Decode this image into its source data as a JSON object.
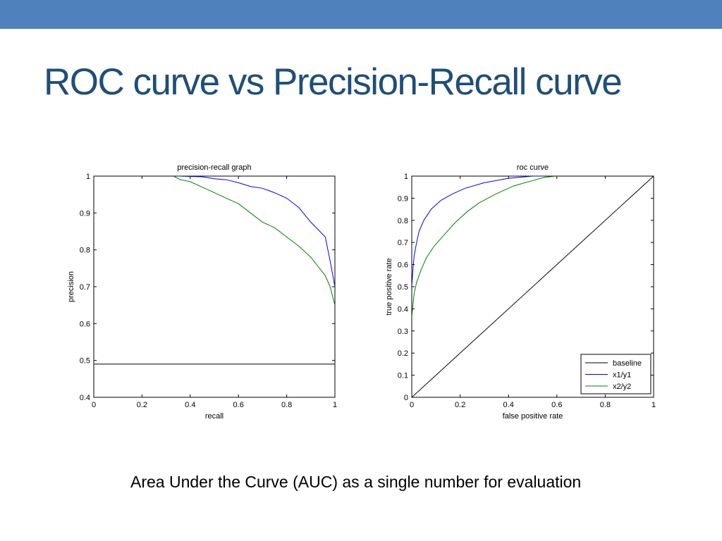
{
  "slide": {
    "title": "ROC curve vs Precision-Recall curve",
    "caption": "Area Under the Curve (AUC) as a single number for evaluation",
    "header_color": "#4f81bd",
    "title_color": "#1f4e79"
  },
  "chart_data": [
    {
      "type": "line",
      "title": "precision-recall graph",
      "xlabel": "recall",
      "ylabel": "precision",
      "xlim": [
        0,
        1
      ],
      "ylim": [
        0.4,
        1
      ],
      "xticks": [
        0,
        0.2,
        0.4,
        0.6,
        0.8,
        1
      ],
      "xtick_labels": [
        "0",
        "0.2",
        "0.4",
        "0.6",
        "0.8",
        "1"
      ],
      "yticks": [
        0.4,
        0.5,
        0.6,
        0.7,
        0.8,
        0.9,
        1
      ],
      "ytick_labels": [
        "0.4",
        "0.5",
        "0.6",
        "0.7",
        "0.8",
        "0.9",
        "1"
      ],
      "grid": false,
      "legend": null,
      "series": [
        {
          "color": "#000000",
          "x": [
            0,
            1
          ],
          "y": [
            0.49,
            0.49
          ]
        },
        {
          "color": "#0000ff",
          "x": [
            0.35,
            0.45,
            0.5,
            0.55,
            0.6,
            0.65,
            0.7,
            0.75,
            0.8,
            0.85,
            0.9,
            0.93,
            0.96,
            0.98,
            1.0
          ],
          "y": [
            1.0,
            0.998,
            0.993,
            0.99,
            0.982,
            0.972,
            0.967,
            0.955,
            0.94,
            0.915,
            0.875,
            0.855,
            0.835,
            0.77,
            0.7
          ]
        },
        {
          "color": "#008000",
          "x": [
            0.33,
            0.36,
            0.4,
            0.45,
            0.5,
            0.55,
            0.6,
            0.65,
            0.7,
            0.75,
            0.8,
            0.85,
            0.9,
            0.93,
            0.96,
            0.98,
            1.0
          ],
          "y": [
            1.0,
            0.99,
            0.985,
            0.97,
            0.955,
            0.94,
            0.925,
            0.9,
            0.875,
            0.86,
            0.835,
            0.81,
            0.78,
            0.755,
            0.73,
            0.7,
            0.65
          ]
        }
      ]
    },
    {
      "type": "line",
      "title": "roc curve",
      "xlabel": "false positive rate",
      "ylabel": "true positive rate",
      "xlim": [
        0,
        1
      ],
      "ylim": [
        0,
        1
      ],
      "xticks": [
        0,
        0.2,
        0.4,
        0.6,
        0.8,
        1
      ],
      "xtick_labels": [
        "0",
        "0.2",
        "0.4",
        "0.6",
        "0.8",
        "1"
      ],
      "yticks": [
        0,
        0.1,
        0.2,
        0.3,
        0.4,
        0.5,
        0.6,
        0.7,
        0.8,
        0.9,
        1
      ],
      "ytick_labels": [
        "0",
        "0.1",
        "0.2",
        "0.3",
        "0.4",
        "0.5",
        "0.6",
        "0.7",
        "0.8",
        "0.9",
        "1"
      ],
      "grid": false,
      "legend": "bottom-right",
      "series": [
        {
          "name": "baseline",
          "color": "#000000",
          "x": [
            0,
            1
          ],
          "y": [
            0,
            1
          ]
        },
        {
          "name": "x1/y1",
          "color": "#0000ff",
          "x": [
            0,
            0.005,
            0.01,
            0.02,
            0.03,
            0.05,
            0.08,
            0.12,
            0.17,
            0.22,
            0.3,
            0.4,
            0.5,
            0.55
          ],
          "y": [
            0.5,
            0.58,
            0.64,
            0.7,
            0.75,
            0.8,
            0.85,
            0.89,
            0.92,
            0.945,
            0.97,
            0.99,
            1.0,
            1.0
          ]
        },
        {
          "name": "x2/y2",
          "color": "#008000",
          "x": [
            0,
            0.005,
            0.01,
            0.02,
            0.04,
            0.06,
            0.09,
            0.13,
            0.18,
            0.23,
            0.28,
            0.35,
            0.42,
            0.5,
            0.55,
            0.6
          ],
          "y": [
            0.36,
            0.42,
            0.47,
            0.52,
            0.58,
            0.63,
            0.68,
            0.73,
            0.79,
            0.84,
            0.88,
            0.92,
            0.955,
            0.98,
            0.995,
            1.0
          ]
        }
      ]
    }
  ]
}
